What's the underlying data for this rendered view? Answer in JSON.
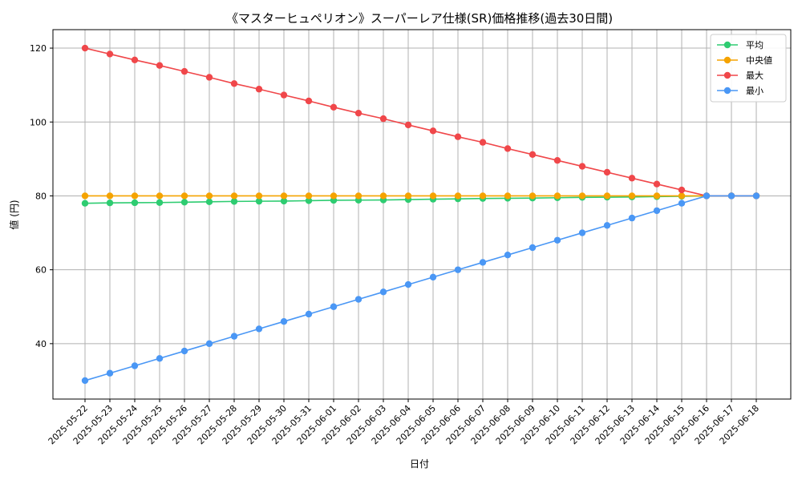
{
  "chart_data": {
    "type": "line",
    "title": "《マスターヒュペリオン》スーパーレア仕様(SR)価格推移(過去30日間)",
    "xlabel": "日付",
    "ylabel": "値 (円)",
    "ylim": [
      25,
      125
    ],
    "yticks": [
      40,
      60,
      80,
      100,
      120
    ],
    "grid": true,
    "legend_position": "top-right",
    "categories": [
      "2025-05-22",
      "2025-05-23",
      "2025-05-24",
      "2025-05-25",
      "2025-05-26",
      "2025-05-27",
      "2025-05-28",
      "2025-05-29",
      "2025-05-30",
      "2025-05-31",
      "2025-06-01",
      "2025-06-02",
      "2025-06-03",
      "2025-06-04",
      "2025-06-05",
      "2025-06-06",
      "2025-06-07",
      "2025-06-08",
      "2025-06-09",
      "2025-06-10",
      "2025-06-11",
      "2025-06-12",
      "2025-06-13",
      "2025-06-14",
      "2025-06-15",
      "2025-06-16",
      "2025-06-17",
      "2025-06-18"
    ],
    "series": [
      {
        "name": "平均",
        "color": "#2ecc71",
        "values": [
          78.0,
          78.1,
          78.15,
          78.2,
          78.3,
          78.4,
          78.5,
          78.55,
          78.6,
          78.7,
          78.8,
          78.85,
          78.9,
          79.0,
          79.1,
          79.2,
          79.3,
          79.35,
          79.4,
          79.5,
          79.6,
          79.65,
          79.7,
          79.8,
          79.9,
          80.0,
          80.0,
          80.0
        ]
      },
      {
        "name": "中央値",
        "color": "#f5a300",
        "values": [
          80,
          80,
          80,
          80,
          80,
          80,
          80,
          80,
          80,
          80,
          80,
          80,
          80,
          80,
          80,
          80,
          80,
          80,
          80,
          80,
          80,
          80,
          80,
          80,
          80,
          80,
          80,
          80
        ]
      },
      {
        "name": "最大",
        "color": "#f0474a",
        "values": [
          120.0,
          118.4,
          116.8,
          115.3,
          113.7,
          112.1,
          110.4,
          108.9,
          107.3,
          105.7,
          104.0,
          102.4,
          100.9,
          99.2,
          97.6,
          96.0,
          94.5,
          92.8,
          91.2,
          89.6,
          88.0,
          86.4,
          84.8,
          83.2,
          81.6,
          80.0,
          80.0,
          80.0
        ]
      },
      {
        "name": "最小",
        "color": "#4a97f5",
        "values": [
          30,
          32,
          34,
          36,
          38,
          40,
          42,
          44,
          46,
          48,
          50,
          52,
          54,
          56,
          58,
          60,
          62,
          64,
          66,
          68,
          70,
          72,
          74,
          76,
          78,
          80,
          80,
          80
        ]
      }
    ]
  }
}
